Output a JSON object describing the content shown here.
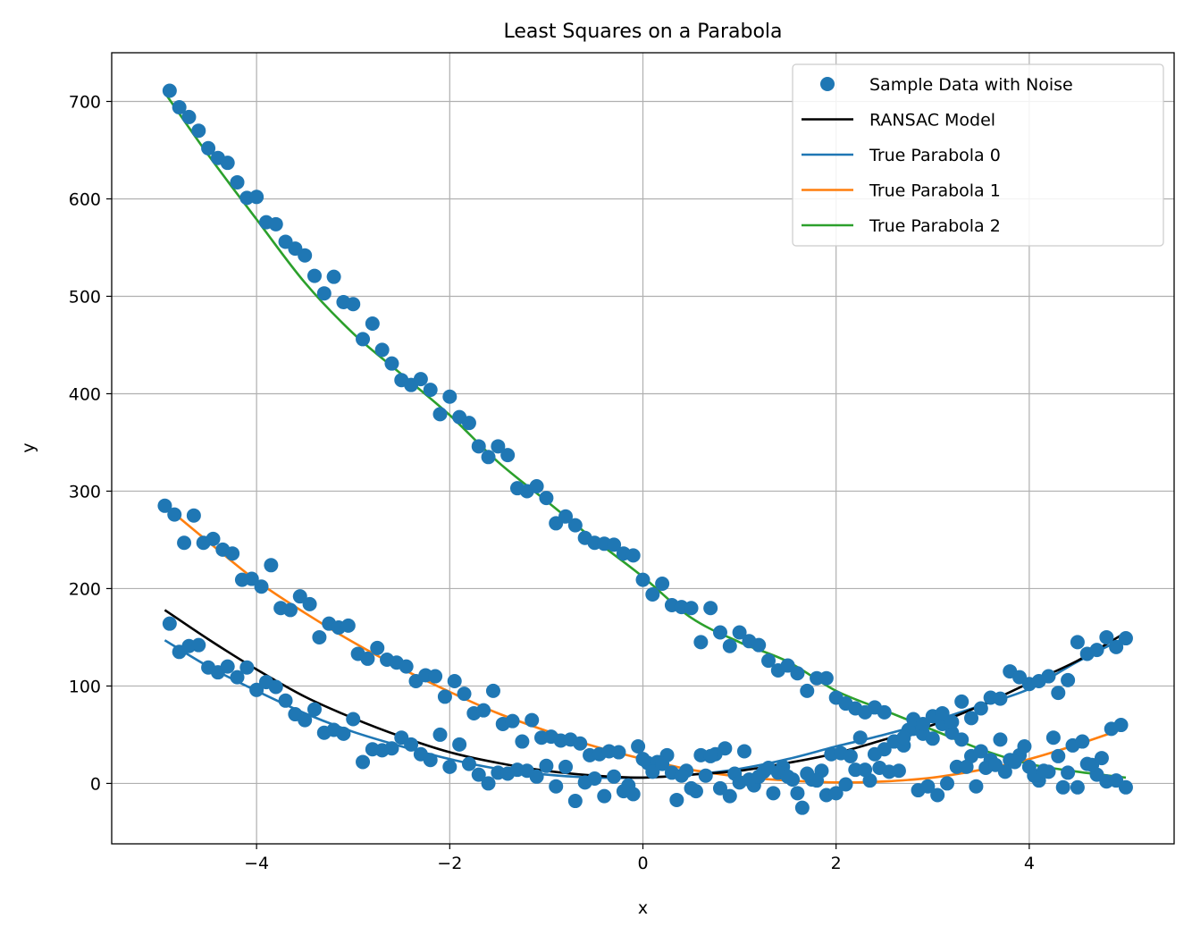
{
  "chart_data": {
    "type": "scatter",
    "title": "Least Squares on a Parabola",
    "xlabel": "x",
    "ylabel": "y",
    "xlim": [
      -5.5,
      5.5
    ],
    "ylim": [
      -62,
      750
    ],
    "x_ticks": [
      -4,
      -2,
      0,
      2,
      4
    ],
    "x_tick_labels": [
      "−4",
      "−2",
      "0",
      "2",
      "4"
    ],
    "y_ticks": [
      0,
      100,
      200,
      300,
      400,
      500,
      600,
      700
    ],
    "y_tick_labels": [
      "0",
      "100",
      "200",
      "300",
      "400",
      "500",
      "600",
      "700"
    ],
    "grid": true,
    "legend_position": "top-right",
    "legend": [
      {
        "label": "Sample Data with Noise",
        "kind": "marker",
        "color": "#1f77b4"
      },
      {
        "label": "RANSAC Model",
        "kind": "line",
        "color": "#000000"
      },
      {
        "label": "True Parabola 0",
        "kind": "line",
        "color": "#1f77b4"
      },
      {
        "label": "True Parabola 1",
        "kind": "line",
        "color": "#ff7f0e"
      },
      {
        "label": "True Parabola 2",
        "kind": "line",
        "color": "#2ca02c"
      }
    ],
    "lines": [
      {
        "name": "True Parabola 2",
        "color": "#2ca02c",
        "x": [
          -4.95,
          -4.5,
          -4,
          -3.5,
          -3,
          -2.5,
          -2,
          -1.5,
          -1,
          -0.5,
          0,
          0.5,
          1,
          1.5,
          2,
          2.5,
          3,
          3.5,
          4,
          4.5,
          5
        ],
        "y": [
          709,
          645,
          579,
          514,
          462,
          420,
          378,
          330,
          290,
          250,
          212,
          170,
          145,
          125,
          95,
          75,
          55,
          35,
          20,
          12,
          6
        ]
      },
      {
        "name": "True Parabola 1",
        "color": "#ff7f0e",
        "x": [
          -4.95,
          -4.5,
          -4,
          -3.5,
          -3,
          -2.5,
          -2,
          -1.5,
          -1,
          -0.5,
          0,
          0.5,
          1,
          1.5,
          2,
          2.5,
          3,
          3.5,
          4,
          4.5,
          5
        ],
        "y": [
          285,
          248,
          208,
          175,
          145,
          118,
          94,
          72,
          54,
          38,
          25,
          14,
          7,
          3,
          1,
          2,
          6,
          14,
          25,
          40,
          57
        ]
      },
      {
        "name": "True Parabola 0",
        "color": "#1f77b4",
        "x": [
          -4.95,
          -4.5,
          -4,
          -3.5,
          -3,
          -2.5,
          -2,
          -1.5,
          -1,
          -0.5,
          0,
          0.5,
          1,
          1.5,
          2,
          2.5,
          3,
          3.5,
          4,
          4.5,
          5
        ],
        "y": [
          147,
          120,
          95,
          72,
          53,
          38,
          25,
          15,
          9,
          6,
          6,
          9,
          15,
          25,
          38,
          50,
          64,
          80,
          97,
          125,
          150
        ]
      },
      {
        "name": "RANSAC Model",
        "color": "#000000",
        "x": [
          -4.95,
          -4.5,
          -4,
          -3.5,
          -3,
          -2.5,
          -2,
          -1.5,
          -1,
          -0.5,
          0,
          0.5,
          1,
          1.5,
          2,
          2.5,
          3,
          3.5,
          4,
          4.5,
          5
        ],
        "y": [
          178,
          148,
          117,
          89,
          67,
          48,
          32,
          21,
          13,
          8,
          6,
          9,
          13,
          21,
          31,
          45,
          60,
          80,
          103,
          126,
          155
        ]
      }
    ],
    "scatter": {
      "name": "Sample Data with Noise",
      "color": "#1f77b4",
      "points": [
        [
          -4.9,
          711
        ],
        [
          -4.8,
          694
        ],
        [
          -4.7,
          684
        ],
        [
          -4.6,
          670
        ],
        [
          -4.5,
          652
        ],
        [
          -4.4,
          642
        ],
        [
          -4.3,
          637
        ],
        [
          -4.2,
          617
        ],
        [
          -4.1,
          601
        ],
        [
          -4.0,
          602
        ],
        [
          -3.9,
          576
        ],
        [
          -3.8,
          574
        ],
        [
          -3.7,
          556
        ],
        [
          -3.6,
          549
        ],
        [
          -3.5,
          542
        ],
        [
          -3.4,
          521
        ],
        [
          -3.3,
          503
        ],
        [
          -3.2,
          520
        ],
        [
          -3.1,
          494
        ],
        [
          -3.0,
          492
        ],
        [
          -2.9,
          456
        ],
        [
          -2.8,
          472
        ],
        [
          -2.7,
          445
        ],
        [
          -2.6,
          431
        ],
        [
          -2.5,
          414
        ],
        [
          -2.4,
          409
        ],
        [
          -2.3,
          415
        ],
        [
          -2.2,
          404
        ],
        [
          -2.1,
          379
        ],
        [
          -2.0,
          397
        ],
        [
          -1.9,
          376
        ],
        [
          -1.8,
          370
        ],
        [
          -1.7,
          346
        ],
        [
          -1.6,
          335
        ],
        [
          -1.5,
          346
        ],
        [
          -1.4,
          337
        ],
        [
          -1.3,
          303
        ],
        [
          -1.2,
          300
        ],
        [
          -1.1,
          305
        ],
        [
          -1.0,
          293
        ],
        [
          -0.9,
          267
        ],
        [
          -0.8,
          274
        ],
        [
          -0.7,
          265
        ],
        [
          -0.6,
          252
        ],
        [
          -0.5,
          247
        ],
        [
          -0.4,
          246
        ],
        [
          -0.3,
          245
        ],
        [
          -0.2,
          236
        ],
        [
          -0.1,
          234
        ],
        [
          0.0,
          209
        ],
        [
          0.1,
          194
        ],
        [
          0.2,
          205
        ],
        [
          0.3,
          183
        ],
        [
          0.4,
          181
        ],
        [
          0.5,
          180
        ],
        [
          0.6,
          145
        ],
        [
          0.7,
          180
        ],
        [
          0.8,
          155
        ],
        [
          0.9,
          141
        ],
        [
          1.0,
          155
        ],
        [
          1.1,
          146
        ],
        [
          1.2,
          142
        ],
        [
          1.3,
          126
        ],
        [
          1.4,
          116
        ],
        [
          1.5,
          121
        ],
        [
          1.6,
          113
        ],
        [
          1.7,
          95
        ],
        [
          1.8,
          108
        ],
        [
          1.9,
          108
        ],
        [
          2.0,
          88
        ],
        [
          2.1,
          82
        ],
        [
          2.2,
          77
        ],
        [
          2.3,
          73
        ],
        [
          2.4,
          78
        ],
        [
          2.5,
          73
        ],
        [
          2.6,
          43
        ],
        [
          2.7,
          39
        ],
        [
          2.8,
          56
        ],
        [
          2.9,
          51
        ],
        [
          3.0,
          46
        ],
        [
          3.1,
          61
        ],
        [
          3.2,
          52
        ],
        [
          3.3,
          45
        ],
        [
          3.4,
          28
        ],
        [
          3.5,
          33
        ],
        [
          3.6,
          24
        ],
        [
          3.7,
          45
        ],
        [
          3.8,
          24
        ],
        [
          3.9,
          29
        ],
        [
          4.0,
          17
        ],
        [
          4.1,
          3
        ],
        [
          4.2,
          12
        ],
        [
          4.3,
          28
        ],
        [
          4.4,
          11
        ],
        [
          4.5,
          -4
        ],
        [
          4.6,
          20
        ],
        [
          4.7,
          9
        ],
        [
          4.8,
          2
        ],
        [
          4.9,
          3
        ],
        [
          5.0,
          -4
        ],
        [
          -4.95,
          285
        ],
        [
          -4.85,
          276
        ],
        [
          -4.75,
          247
        ],
        [
          -4.65,
          275
        ],
        [
          -4.55,
          247
        ],
        [
          -4.45,
          251
        ],
        [
          -4.35,
          240
        ],
        [
          -4.25,
          236
        ],
        [
          -4.15,
          209
        ],
        [
          -4.05,
          210
        ],
        [
          -3.95,
          202
        ],
        [
          -3.85,
          224
        ],
        [
          -3.75,
          180
        ],
        [
          -3.65,
          178
        ],
        [
          -3.55,
          192
        ],
        [
          -3.45,
          184
        ],
        [
          -3.35,
          150
        ],
        [
          -3.25,
          164
        ],
        [
          -3.15,
          160
        ],
        [
          -3.05,
          162
        ],
        [
          -2.95,
          133
        ],
        [
          -2.85,
          128
        ],
        [
          -2.75,
          139
        ],
        [
          -2.65,
          127
        ],
        [
          -2.55,
          124
        ],
        [
          -2.45,
          120
        ],
        [
          -2.35,
          105
        ],
        [
          -2.25,
          111
        ],
        [
          -2.15,
          110
        ],
        [
          -2.05,
          89
        ],
        [
          -1.95,
          105
        ],
        [
          -1.85,
          92
        ],
        [
          -1.75,
          72
        ],
        [
          -1.65,
          75
        ],
        [
          -1.55,
          95
        ],
        [
          -1.45,
          61
        ],
        [
          -1.35,
          64
        ],
        [
          -1.25,
          43
        ],
        [
          -1.15,
          65
        ],
        [
          -1.05,
          47
        ],
        [
          -0.95,
          48
        ],
        [
          -0.85,
          44
        ],
        [
          -0.75,
          45
        ],
        [
          -0.65,
          41
        ],
        [
          -0.55,
          29
        ],
        [
          -0.45,
          30
        ],
        [
          -0.35,
          33
        ],
        [
          -0.25,
          32
        ],
        [
          -0.15,
          -2
        ],
        [
          -0.05,
          38
        ],
        [
          0.05,
          21
        ],
        [
          0.15,
          22
        ],
        [
          0.25,
          29
        ],
        [
          0.35,
          -17
        ],
        [
          0.45,
          13
        ],
        [
          0.55,
          -8
        ],
        [
          0.65,
          8
        ],
        [
          0.75,
          30
        ],
        [
          0.85,
          36
        ],
        [
          0.95,
          10
        ],
        [
          1.05,
          33
        ],
        [
          1.15,
          -2
        ],
        [
          1.25,
          12
        ],
        [
          1.35,
          -10
        ],
        [
          1.45,
          17
        ],
        [
          1.55,
          4
        ],
        [
          1.65,
          -25
        ],
        [
          1.75,
          4
        ],
        [
          1.85,
          13
        ],
        [
          1.95,
          30
        ],
        [
          2.05,
          31
        ],
        [
          2.15,
          28
        ],
        [
          2.25,
          47
        ],
        [
          2.35,
          3
        ],
        [
          2.45,
          16
        ],
        [
          2.55,
          12
        ],
        [
          2.65,
          13
        ],
        [
          2.75,
          55
        ],
        [
          2.85,
          -7
        ],
        [
          2.95,
          -3
        ],
        [
          3.05,
          -12
        ],
        [
          3.15,
          0
        ],
        [
          3.25,
          17
        ],
        [
          3.35,
          17
        ],
        [
          3.45,
          -3
        ],
        [
          3.55,
          16
        ],
        [
          3.65,
          19
        ],
        [
          3.75,
          12
        ],
        [
          3.85,
          22
        ],
        [
          3.95,
          38
        ],
        [
          4.05,
          8
        ],
        [
          4.15,
          13
        ],
        [
          4.25,
          47
        ],
        [
          4.35,
          -4
        ],
        [
          4.45,
          39
        ],
        [
          4.55,
          43
        ],
        [
          4.65,
          19
        ],
        [
          4.75,
          26
        ],
        [
          4.85,
          56
        ],
        [
          4.95,
          60
        ],
        [
          -4.9,
          164
        ],
        [
          -4.8,
          135
        ],
        [
          -4.7,
          141
        ],
        [
          -4.6,
          142
        ],
        [
          -4.5,
          119
        ],
        [
          -4.4,
          114
        ],
        [
          -4.3,
          120
        ],
        [
          -4.2,
          109
        ],
        [
          -4.1,
          119
        ],
        [
          -4.0,
          96
        ],
        [
          -3.9,
          104
        ],
        [
          -3.8,
          99
        ],
        [
          -3.7,
          85
        ],
        [
          -3.6,
          71
        ],
        [
          -3.5,
          65
        ],
        [
          -3.4,
          76
        ],
        [
          -3.3,
          52
        ],
        [
          -3.2,
          55
        ],
        [
          -3.1,
          51
        ],
        [
          -3.0,
          66
        ],
        [
          -2.9,
          22
        ],
        [
          -2.8,
          35
        ],
        [
          -2.7,
          34
        ],
        [
          -2.6,
          36
        ],
        [
          -2.5,
          47
        ],
        [
          -2.4,
          40
        ],
        [
          -2.3,
          30
        ],
        [
          -2.2,
          24
        ],
        [
          -2.1,
          50
        ],
        [
          -2.0,
          17
        ],
        [
          -1.9,
          40
        ],
        [
          -1.8,
          20
        ],
        [
          -1.7,
          9
        ],
        [
          -1.6,
          0
        ],
        [
          -1.5,
          11
        ],
        [
          -1.4,
          10
        ],
        [
          -1.3,
          14
        ],
        [
          -1.2,
          13
        ],
        [
          -1.1,
          7
        ],
        [
          -1.0,
          18
        ],
        [
          -0.9,
          -3
        ],
        [
          -0.8,
          17
        ],
        [
          -0.7,
          -18
        ],
        [
          -0.6,
          1
        ],
        [
          -0.5,
          5
        ],
        [
          -0.4,
          -13
        ],
        [
          -0.3,
          7
        ],
        [
          -0.2,
          -8
        ],
        [
          -0.1,
          -11
        ],
        [
          0.0,
          25
        ],
        [
          0.1,
          12
        ],
        [
          0.2,
          20
        ],
        [
          0.3,
          11
        ],
        [
          0.4,
          8
        ],
        [
          0.5,
          -5
        ],
        [
          0.6,
          29
        ],
        [
          0.7,
          28
        ],
        [
          0.8,
          -5
        ],
        [
          0.9,
          -13
        ],
        [
          1.0,
          1
        ],
        [
          1.1,
          4
        ],
        [
          1.2,
          7
        ],
        [
          1.3,
          16
        ],
        [
          1.4,
          11
        ],
        [
          1.5,
          7
        ],
        [
          1.6,
          -10
        ],
        [
          1.7,
          10
        ],
        [
          1.8,
          3
        ],
        [
          1.9,
          -12
        ],
        [
          2.0,
          -10
        ],
        [
          2.1,
          -1
        ],
        [
          2.2,
          14
        ],
        [
          2.3,
          14
        ],
        [
          2.4,
          30
        ],
        [
          2.5,
          35
        ],
        [
          2.6,
          43
        ],
        [
          2.7,
          47
        ],
        [
          2.8,
          66
        ],
        [
          2.9,
          61
        ],
        [
          3.0,
          69
        ],
        [
          3.1,
          72
        ],
        [
          3.2,
          63
        ],
        [
          3.3,
          84
        ],
        [
          3.4,
          67
        ],
        [
          3.5,
          77
        ],
        [
          3.6,
          88
        ],
        [
          3.7,
          87
        ],
        [
          3.8,
          115
        ],
        [
          3.9,
          109
        ],
        [
          4.0,
          102
        ],
        [
          4.1,
          105
        ],
        [
          4.2,
          110
        ],
        [
          4.3,
          93
        ],
        [
          4.4,
          106
        ],
        [
          4.5,
          145
        ],
        [
          4.6,
          133
        ],
        [
          4.7,
          137
        ],
        [
          4.8,
          150
        ],
        [
          4.9,
          140
        ],
        [
          5.0,
          149
        ]
      ]
    }
  }
}
